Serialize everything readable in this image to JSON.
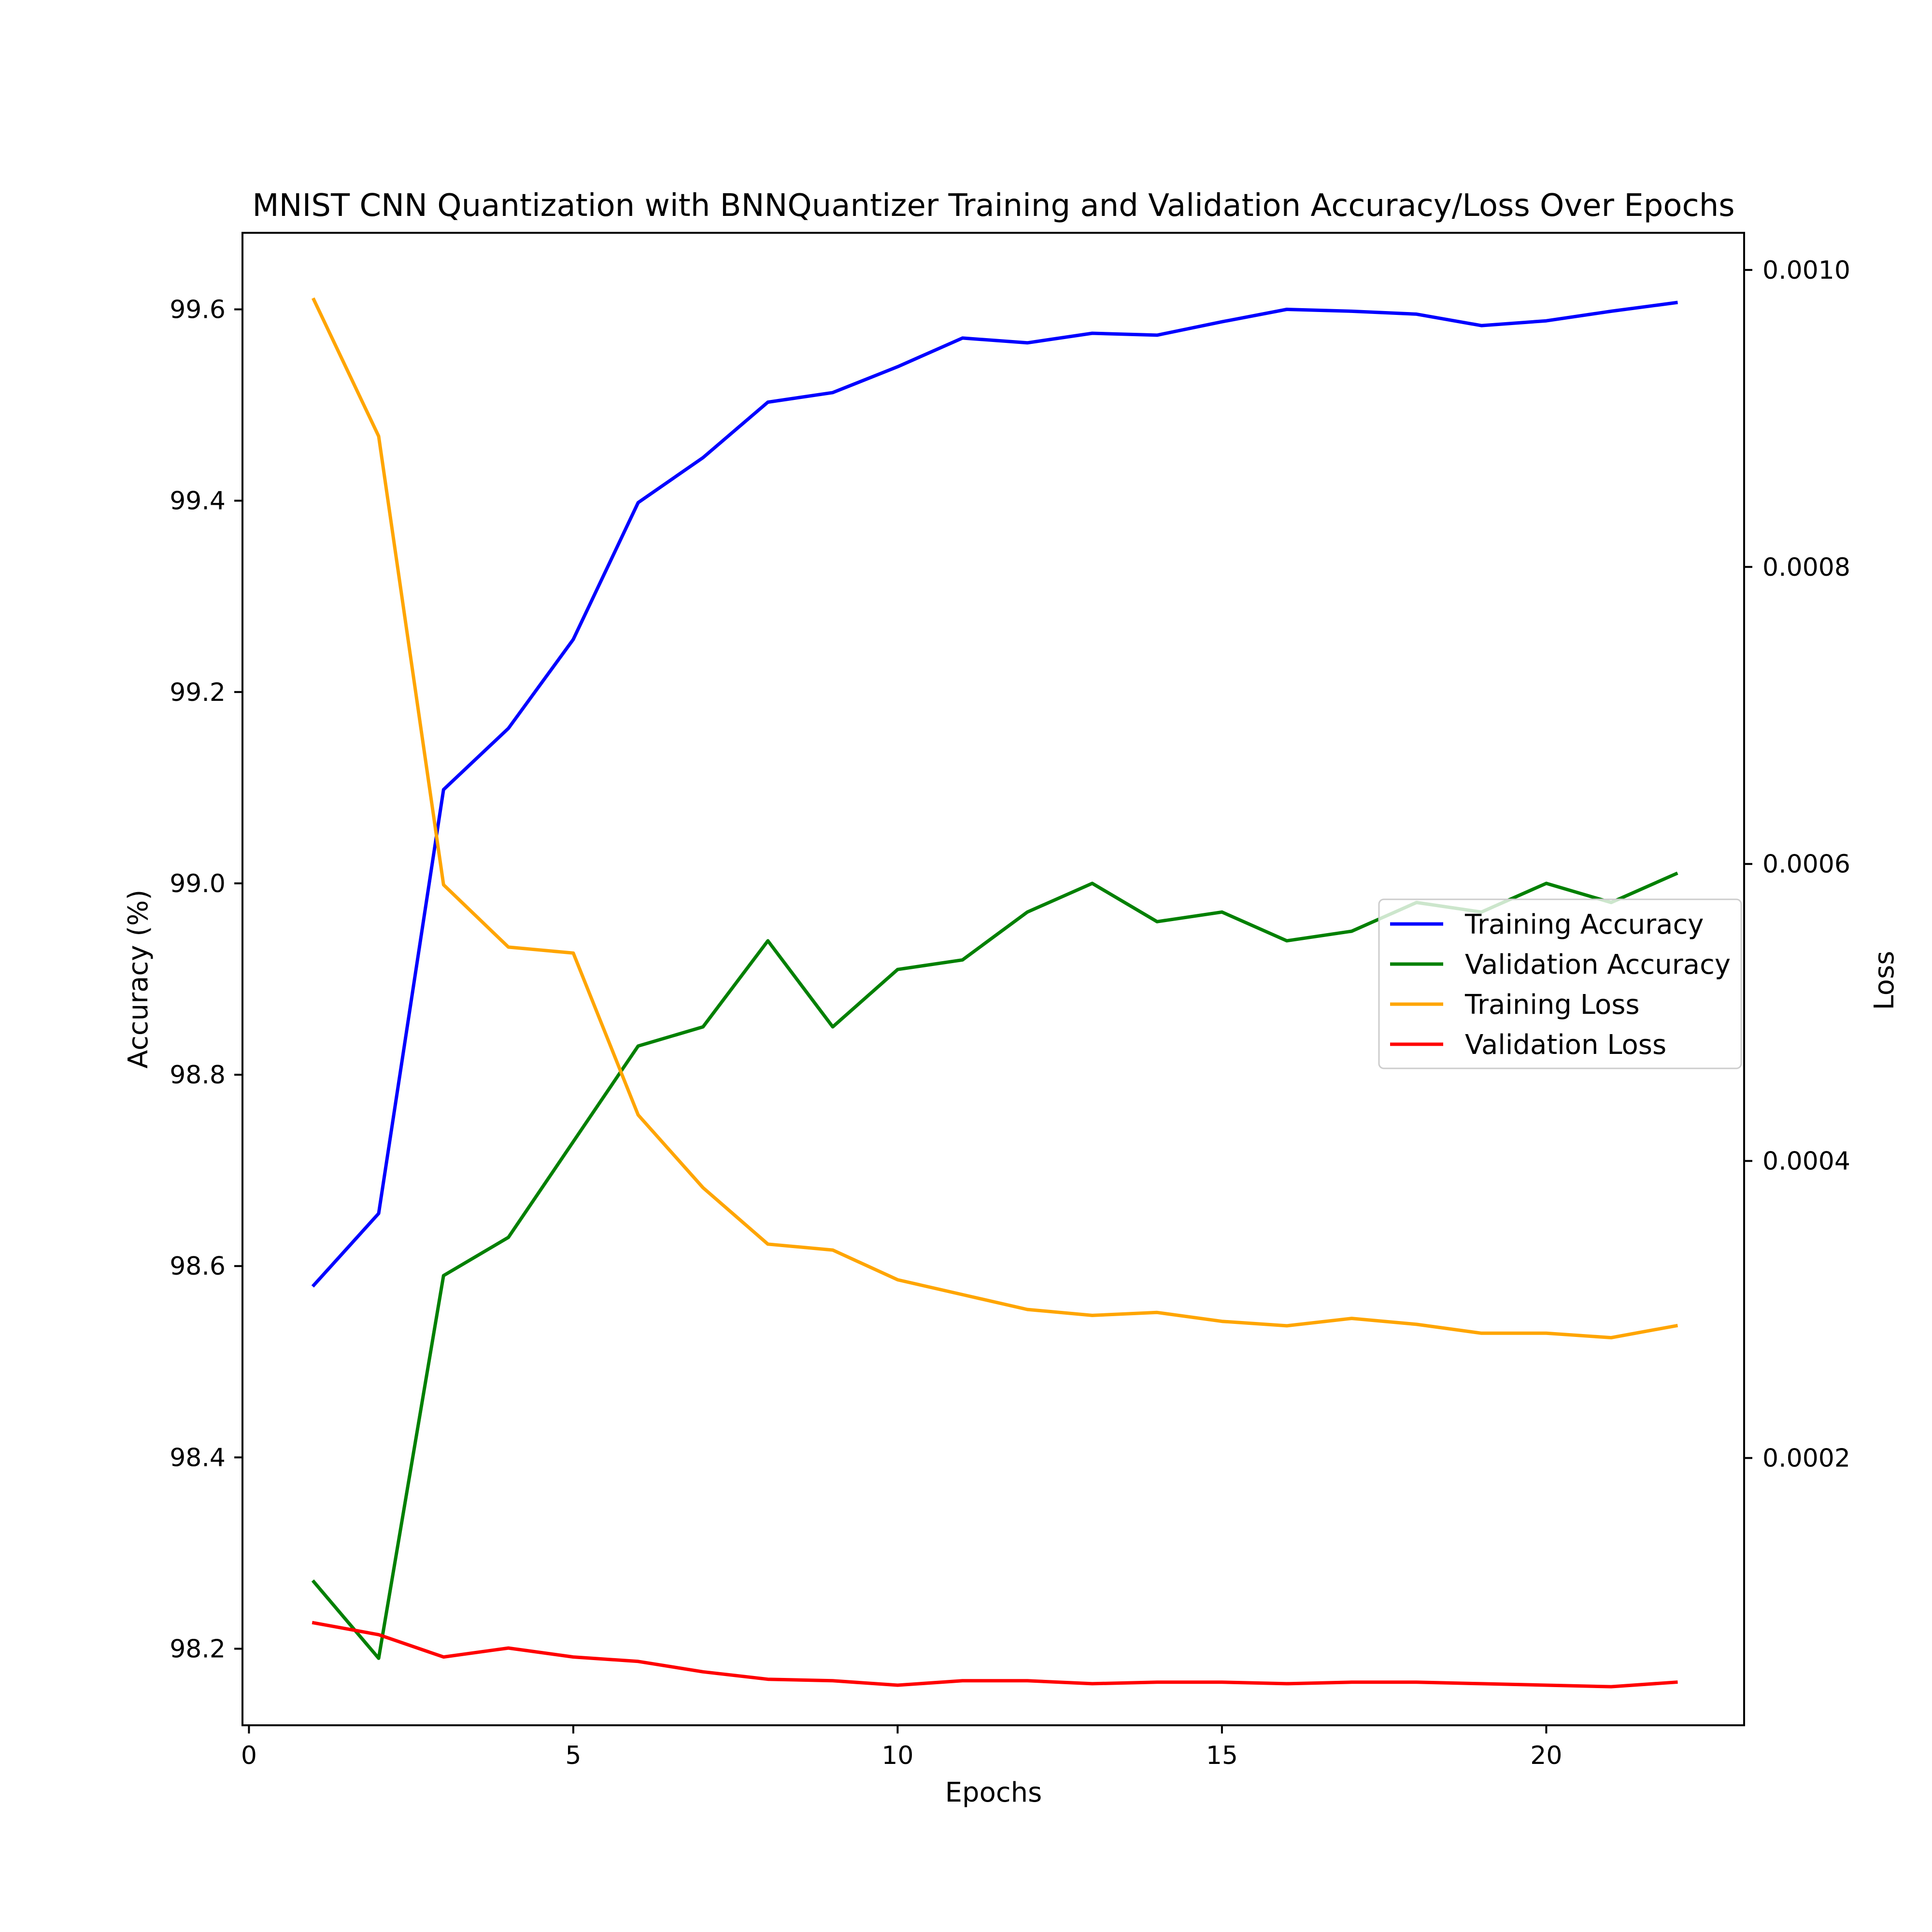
{
  "chart_data": {
    "type": "line",
    "title": "MNIST CNN Quantization with BNNQuantizer Training and Validation Accuracy/Loss Over Epochs",
    "xlabel": "Epochs",
    "ylabel": "Accuracy (%)",
    "y2label": "Loss",
    "xlim": [
      -0.1,
      23.05
    ],
    "ylim": [
      98.12,
      99.68
    ],
    "y2lim": [
      2e-05,
      0.001025
    ],
    "x_ticks": [
      0,
      5,
      10,
      15,
      20
    ],
    "y_ticks": [
      98.2,
      98.4,
      98.6,
      98.8,
      99.0,
      99.2,
      99.4,
      99.6
    ],
    "y_tick_labels": [
      "98.2",
      "98.4",
      "98.6",
      "98.8",
      "99.0",
      "99.2",
      "99.4",
      "99.6"
    ],
    "y2_ticks": [
      0.0002,
      0.0004,
      0.0006,
      0.0008,
      0.001
    ],
    "y2_tick_labels": [
      "0.0002",
      "0.0004",
      "0.0006",
      "0.0008",
      "0.0010"
    ],
    "grid": false,
    "legend": "center-right",
    "x": [
      1,
      2,
      3,
      4,
      5,
      6,
      7,
      8,
      9,
      10,
      11,
      12,
      13,
      14,
      15,
      16,
      17,
      18,
      19,
      20,
      21,
      22
    ],
    "series": [
      {
        "name": "Training Accuracy",
        "axis": "left",
        "color": "#0000ff",
        "values": [
          98.58,
          98.655,
          99.098,
          99.162,
          99.255,
          99.398,
          99.445,
          99.503,
          99.513,
          99.54,
          99.57,
          99.565,
          99.575,
          99.573,
          99.587,
          99.6,
          99.598,
          99.595,
          99.583,
          99.588,
          99.598,
          99.607
        ]
      },
      {
        "name": "Validation Accuracy",
        "axis": "left",
        "color": "#008000",
        "values": [
          98.27,
          98.19,
          98.59,
          98.63,
          98.73,
          98.83,
          98.85,
          98.94,
          98.85,
          98.91,
          98.92,
          98.97,
          99.0,
          98.96,
          98.97,
          98.94,
          98.95,
          98.98,
          98.97,
          99.0,
          98.98,
          99.01
        ]
      },
      {
        "name": "Training Loss",
        "axis": "right",
        "color": "#ffa500",
        "values": [
          0.00098,
          0.000888,
          0.000586,
          0.000544,
          0.00054,
          0.000431,
          0.000382,
          0.000344,
          0.00034,
          0.00032,
          0.00031,
          0.0003,
          0.000296,
          0.000298,
          0.000292,
          0.000289,
          0.000294,
          0.00029,
          0.000284,
          0.000284,
          0.000281,
          0.000289
        ]
      },
      {
        "name": "Validation Loss",
        "axis": "right",
        "color": "#ff0000",
        "values": [
          8.9e-05,
          8.1e-05,
          6.6e-05,
          7.2e-05,
          6.6e-05,
          6.3e-05,
          5.6e-05,
          5.1e-05,
          5e-05,
          4.7e-05,
          5e-05,
          5e-05,
          4.8e-05,
          4.9e-05,
          4.9e-05,
          4.8e-05,
          4.9e-05,
          4.9e-05,
          4.8e-05,
          4.7e-05,
          4.6e-05,
          4.9e-05
        ]
      }
    ]
  }
}
